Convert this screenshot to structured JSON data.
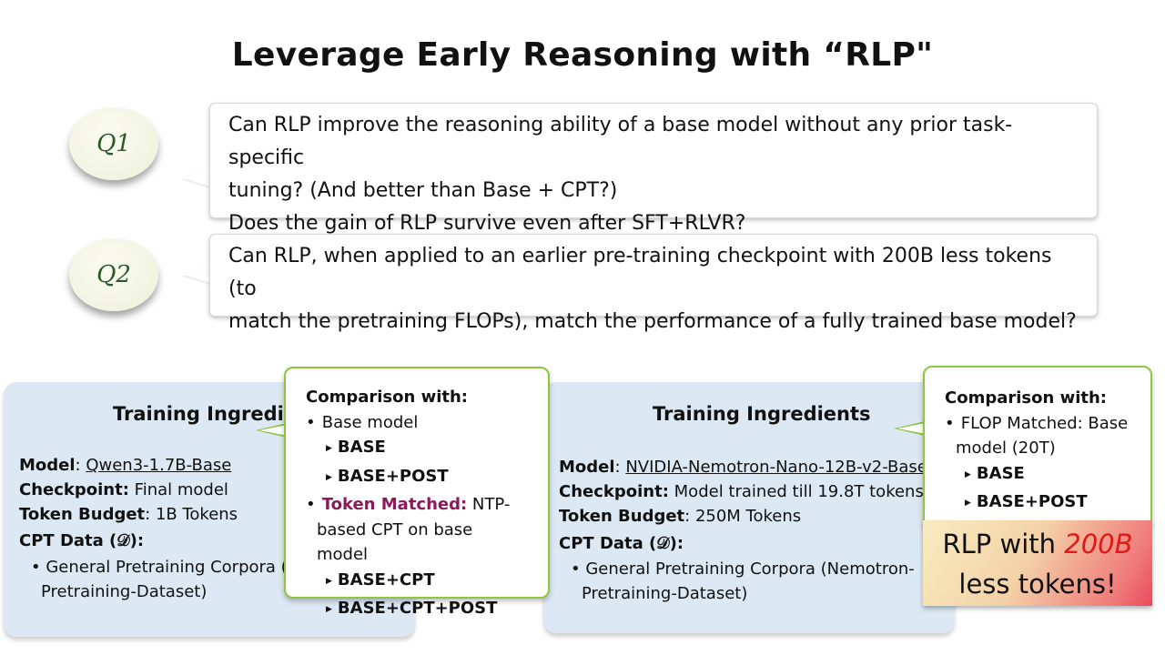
{
  "title": "Leverage Early Reasoning with “RLP\"",
  "questions": [
    {
      "badge": "Q1",
      "lines": [
        "Can RLP improve the reasoning ability of a base model without any prior task-specific",
        "tuning? (And better than Base + CPT?)",
        "Does the gain of RLP survive even after SFT+RLVR?"
      ]
    },
    {
      "badge": "Q2",
      "lines": [
        "Can RLP, when applied to an earlier pre-training checkpoint with 200B less tokens (to",
        "match the pretraining FLOPs), match the performance of a fully trained base model?"
      ]
    }
  ],
  "left_panel": {
    "title": "Training Ingredients",
    "model_label": "Model",
    "model_value": "Qwen3-1.7B-Base",
    "checkpoint_label": "Checkpoint:",
    "checkpoint_value": "Final model",
    "budget_label": "Token Budget",
    "budget_value": ": 1B Tokens",
    "cpt_label": "CPT Data (𝒟):",
    "cpt_item_line1": "General Pretraining Corpora (Nemotron-",
    "cpt_item_line2": "Pretraining-Dataset)"
  },
  "right_panel": {
    "title": "Training Ingredients",
    "model_label": "Model",
    "model_value": "NVIDIA-Nemotron-Nano-12B-v2-Base",
    "checkpoint_label": "Checkpoint:",
    "checkpoint_value": "Model trained till 19.8T tokens",
    "budget_label": "Token Budget",
    "budget_value": ": 250M Tokens",
    "cpt_label": "CPT Data (𝒟):",
    "cpt_item_line1": "General Pretraining Corpora (Nemotron-",
    "cpt_item_line2": "Pretraining-Dataset)"
  },
  "left_callout": {
    "heading": "Comparison with:",
    "item1": "Base model",
    "item1_subs": [
      "BASE",
      "BASE+POST"
    ],
    "item2_highlight": "Token Matched:",
    "item2_rest_line1": " NTP-",
    "item2_rest_line2": "based CPT on base model",
    "item2_subs": [
      "BASE+CPT",
      "BASE+CPT+POST"
    ]
  },
  "right_callout": {
    "heading": "Comparison with:",
    "item1_line1": "FLOP Matched: Base",
    "item1_line2": "model (20T)",
    "item1_subs": [
      "BASE",
      "BASE+POST"
    ]
  },
  "highlight_box": {
    "text_before": "RLP with ",
    "text_red": "200B",
    "text_after": "less tokens!"
  }
}
